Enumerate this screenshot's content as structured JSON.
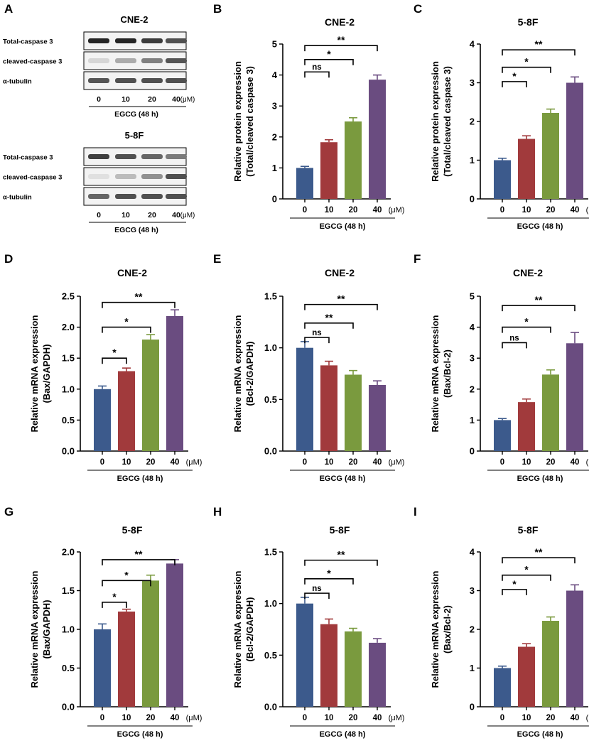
{
  "figure": {
    "panel_letters": [
      "A",
      "B",
      "C",
      "D",
      "E",
      "F",
      "G",
      "H",
      "I"
    ],
    "colors": {
      "bar_0": "#3C5A8C",
      "bar_10": "#A13A3C",
      "bar_20": "#7A9A3E",
      "bar_40": "#6A4C80",
      "error": "#000000",
      "axis": "#000000"
    }
  },
  "blots": [
    {
      "panel": "A",
      "title": "CNE-2",
      "rows": [
        {
          "label": "Total-caspase 3",
          "intensities": [
            0.92,
            0.92,
            0.82,
            0.72
          ]
        },
        {
          "label": "cleaved-caspase 3",
          "intensities": [
            0.1,
            0.3,
            0.5,
            0.7
          ]
        },
        {
          "label": "α-tubulin",
          "intensities": [
            0.7,
            0.72,
            0.72,
            0.72
          ]
        }
      ],
      "doses": [
        "0",
        "10",
        "20",
        "40"
      ],
      "unit": "(μM)",
      "treatment": "EGCG (48 h)"
    },
    {
      "panel": "A",
      "title": "5-8F",
      "rows": [
        {
          "label": "Total-caspase 3",
          "intensities": [
            0.8,
            0.72,
            0.62,
            0.52
          ]
        },
        {
          "label": "cleaved-caspase 3",
          "intensities": [
            0.05,
            0.22,
            0.42,
            0.72
          ]
        },
        {
          "label": "α-tubulin",
          "intensities": [
            0.62,
            0.72,
            0.72,
            0.72
          ]
        }
      ],
      "doses": [
        "0",
        "10",
        "20",
        "40"
      ],
      "unit": "(μM)",
      "treatment": "EGCG (48 h)"
    }
  ],
  "chart_data": [
    {
      "panel": "B",
      "type": "bar",
      "title": "CNE-2",
      "ylabel_line1": "Relative protein expression",
      "ylabel_line2": "(Total/cleaved caspase 3)",
      "categories": [
        "0",
        "10",
        "20",
        "40"
      ],
      "unit": "(μM)",
      "xlabel": "EGCG (48 h)",
      "values": [
        1.0,
        1.83,
        2.5,
        3.85
      ],
      "errors": [
        0.05,
        0.08,
        0.12,
        0.15
      ],
      "ylim": [
        0,
        5
      ],
      "yticks": [
        0,
        1,
        2,
        3,
        4,
        5
      ],
      "tick_decimals": 0,
      "significance": [
        {
          "from": 0,
          "to": 1,
          "label": "ns",
          "level": 4.1
        },
        {
          "from": 0,
          "to": 2,
          "label": "*",
          "level": 4.5
        },
        {
          "from": 0,
          "to": 3,
          "label": "**",
          "level": 4.95
        }
      ]
    },
    {
      "panel": "C",
      "type": "bar",
      "title": "5-8F",
      "ylabel_line1": "Relative protein expression",
      "ylabel_line2": "(Total/cleaved caspase 3)",
      "categories": [
        "0",
        "10",
        "20",
        "40"
      ],
      "unit": "(μM)",
      "xlabel": "EGCG (48 h)",
      "values": [
        1.0,
        1.55,
        2.22,
        3.0
      ],
      "errors": [
        0.05,
        0.08,
        0.1,
        0.15
      ],
      "ylim": [
        0,
        4
      ],
      "yticks": [
        0,
        1,
        2,
        3,
        4
      ],
      "tick_decimals": 0,
      "significance": [
        {
          "from": 0,
          "to": 1,
          "label": "*",
          "level": 3.03
        },
        {
          "from": 0,
          "to": 2,
          "label": "*",
          "level": 3.4
        },
        {
          "from": 0,
          "to": 3,
          "label": "**",
          "level": 3.85
        }
      ]
    },
    {
      "panel": "D",
      "type": "bar",
      "title": "CNE-2",
      "ylabel_line1": "Relative mRNA expression",
      "ylabel_line2": "(Bax/GAPDH)",
      "categories": [
        "0",
        "10",
        "20",
        "40"
      ],
      "unit": "(μM)",
      "xlabel": "EGCG (48 h)",
      "values": [
        1.0,
        1.29,
        1.8,
        2.18
      ],
      "errors": [
        0.05,
        0.05,
        0.08,
        0.1
      ],
      "ylim": [
        0,
        2.5
      ],
      "yticks": [
        0,
        0.5,
        1.0,
        1.5,
        2.0,
        2.5
      ],
      "tick_decimals": 1,
      "significance": [
        {
          "from": 0,
          "to": 1,
          "label": "*",
          "level": 1.5
        },
        {
          "from": 0,
          "to": 2,
          "label": "*",
          "level": 2.0
        },
        {
          "from": 0,
          "to": 3,
          "label": "**",
          "level": 2.4
        }
      ]
    },
    {
      "panel": "E",
      "type": "bar",
      "title": "CNE-2",
      "ylabel_line1": "Relative mRNA expression",
      "ylabel_line2": "(Bcl-2/GAPDH)",
      "categories": [
        "0",
        "10",
        "20",
        "40"
      ],
      "unit": "(μM)",
      "xlabel": "EGCG (48 h)",
      "values": [
        1.0,
        0.83,
        0.74,
        0.64
      ],
      "errors": [
        0.06,
        0.04,
        0.04,
        0.04
      ],
      "ylim": [
        0,
        1.5
      ],
      "yticks": [
        0,
        0.5,
        1.0,
        1.5
      ],
      "tick_decimals": 1,
      "significance": [
        {
          "from": 0,
          "to": 1,
          "label": "ns",
          "level": 1.1
        },
        {
          "from": 0,
          "to": 2,
          "label": "**",
          "level": 1.24
        },
        {
          "from": 0,
          "to": 3,
          "label": "**",
          "level": 1.42
        }
      ]
    },
    {
      "panel": "F",
      "type": "bar",
      "title": "CNE-2",
      "ylabel_line1": "Relative mRNA expression",
      "ylabel_line2": "(Bax/Bcl-2)",
      "categories": [
        "0",
        "10",
        "20",
        "40"
      ],
      "unit": "(μM)",
      "xlabel": "EGCG (48 h)",
      "values": [
        1.0,
        1.58,
        2.47,
        3.48
      ],
      "errors": [
        0.05,
        0.1,
        0.15,
        0.35
      ],
      "ylim": [
        0,
        5
      ],
      "yticks": [
        0,
        1,
        2,
        3,
        4,
        5
      ],
      "tick_decimals": 0,
      "significance": [
        {
          "from": 0,
          "to": 1,
          "label": "ns",
          "level": 3.5
        },
        {
          "from": 0,
          "to": 2,
          "label": "*",
          "level": 4.0
        },
        {
          "from": 0,
          "to": 3,
          "label": "**",
          "level": 4.7
        }
      ]
    },
    {
      "panel": "G",
      "type": "bar",
      "title": "5-8F",
      "ylabel_line1": "Relative mRNA expression",
      "ylabel_line2": "(Bax/GAPDH)",
      "categories": [
        "0",
        "10",
        "20",
        "40"
      ],
      "unit": "(μM)",
      "xlabel": "EGCG (48 h)",
      "values": [
        1.0,
        1.23,
        1.63,
        1.85
      ],
      "errors": [
        0.07,
        0.03,
        0.07,
        0.05
      ],
      "ylim": [
        0,
        2.0
      ],
      "yticks": [
        0,
        0.5,
        1.0,
        1.5,
        2.0
      ],
      "tick_decimals": 1,
      "significance": [
        {
          "from": 0,
          "to": 1,
          "label": "*",
          "level": 1.35
        },
        {
          "from": 0,
          "to": 2,
          "label": "*",
          "level": 1.63
        },
        {
          "from": 0,
          "to": 3,
          "label": "**",
          "level": 1.9
        }
      ]
    },
    {
      "panel": "H",
      "type": "bar",
      "title": "5-8F",
      "ylabel_line1": "Relative mRNA expression",
      "ylabel_line2": "(Bcl-2/GAPDH)",
      "categories": [
        "0",
        "10",
        "20",
        "40"
      ],
      "unit": "(μM)",
      "xlabel": "EGCG (48 h)",
      "values": [
        1.0,
        0.8,
        0.73,
        0.62
      ],
      "errors": [
        0.06,
        0.05,
        0.03,
        0.04
      ],
      "ylim": [
        0,
        1.5
      ],
      "yticks": [
        0,
        0.5,
        1.0,
        1.5
      ],
      "tick_decimals": 1,
      "significance": [
        {
          "from": 0,
          "to": 1,
          "label": "ns",
          "level": 1.1
        },
        {
          "from": 0,
          "to": 2,
          "label": "*",
          "level": 1.24
        },
        {
          "from": 0,
          "to": 3,
          "label": "**",
          "level": 1.42
        }
      ]
    },
    {
      "panel": "I",
      "type": "bar",
      "title": "5-8F",
      "ylabel_line1": "Relative mRNA expression",
      "ylabel_line2": "(Bax/Bcl-2)",
      "categories": [
        "0",
        "10",
        "20",
        "40"
      ],
      "unit": "(μM)",
      "xlabel": "EGCG (48 h)",
      "values": [
        1.0,
        1.55,
        2.22,
        3.0
      ],
      "errors": [
        0.05,
        0.08,
        0.1,
        0.15
      ],
      "ylim": [
        0,
        4
      ],
      "yticks": [
        0,
        1,
        2,
        3,
        4
      ],
      "tick_decimals": 0,
      "significance": [
        {
          "from": 0,
          "to": 1,
          "label": "*",
          "level": 3.03
        },
        {
          "from": 0,
          "to": 2,
          "label": "*",
          "level": 3.4
        },
        {
          "from": 0,
          "to": 3,
          "label": "**",
          "level": 3.85
        }
      ]
    }
  ]
}
